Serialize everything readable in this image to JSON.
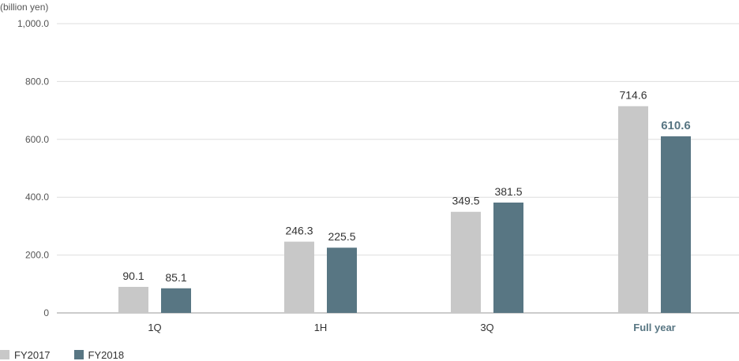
{
  "chart_data": {
    "type": "bar",
    "unit_label": "(billion yen)",
    "categories": [
      "1Q",
      "1H",
      "3Q",
      "Full year"
    ],
    "series": [
      {
        "name": "FY2017",
        "values": [
          90.1,
          246.3,
          349.5,
          714.6
        ],
        "labels": [
          "90.1",
          "246.3",
          "349.5",
          "714.6"
        ],
        "color": "#c8c8c8"
      },
      {
        "name": "FY2018",
        "values": [
          85.1,
          225.5,
          381.5,
          610.6
        ],
        "labels": [
          "85.1",
          "225.5",
          "381.5",
          "610.6"
        ],
        "color": "#587683"
      }
    ],
    "ylim": [
      0,
      1000
    ],
    "yticks": [
      0,
      200,
      400,
      600,
      800,
      1000
    ],
    "ytick_labels": [
      "0",
      "200.0",
      "400.0",
      "600.0",
      "800.0",
      "1,000.0"
    ],
    "grid": true,
    "legend_position": "bottom-left",
    "highlight_category": "Full year",
    "highlight_color": "#587683",
    "text_color": "#333333",
    "grid_color": "#dddddd"
  }
}
